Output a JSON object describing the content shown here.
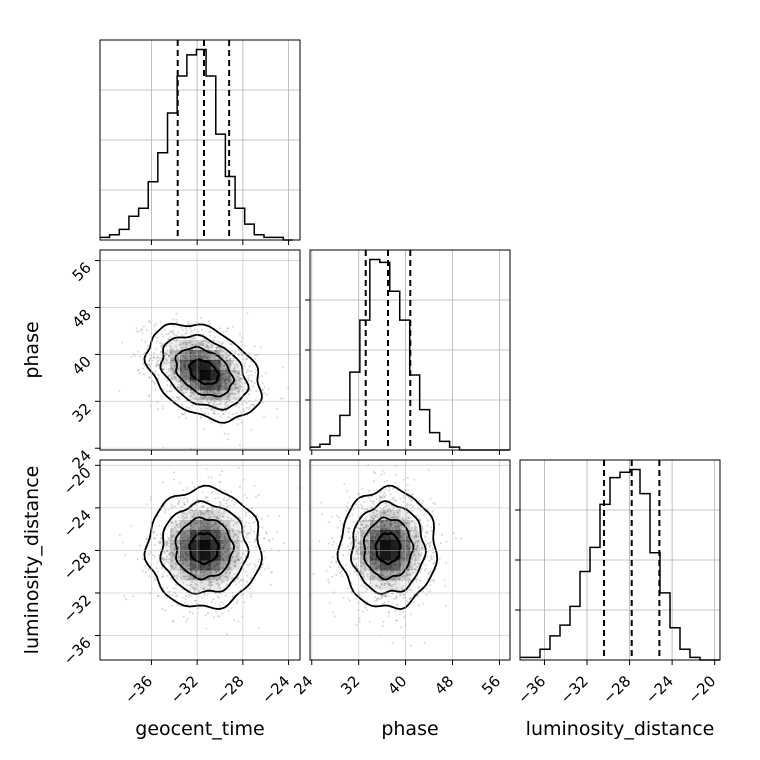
{
  "chart_data": {
    "type": "corner",
    "parameters": [
      {
        "name": "geocent_time",
        "ticks": [
          -36,
          -32,
          -28,
          -24
        ],
        "range": [
          -40.5,
          -23.0
        ]
      },
      {
        "name": "phase",
        "ticks": [
          24,
          32,
          40,
          48,
          56
        ],
        "range": [
          23.7,
          57.8
        ]
      },
      {
        "name": "luminosity_distance",
        "ticks": [
          -36,
          -32,
          -28,
          -24,
          -20
        ],
        "range": [
          -38.3,
          -19.5
        ]
      }
    ],
    "quantiles": {
      "geocent_time": [
        -33.7,
        -31.4,
        -29.2
      ],
      "phase": [
        33.2,
        37.0,
        40.8
      ],
      "luminosity_distance": [
        -30.4,
        -27.8,
        -25.2
      ]
    },
    "histograms": {
      "geocent_time": {
        "bin_edges": [
          -40.5,
          -39.66,
          -38.81,
          -37.97,
          -37.12,
          -36.28,
          -35.44,
          -34.59,
          -33.75,
          -32.9,
          -32.06,
          -31.22,
          -30.37,
          -29.53,
          -28.68,
          -27.84,
          -27.0,
          -26.15,
          -25.31,
          -24.46,
          -23.62
        ],
        "counts": [
          1,
          2,
          4,
          9,
          12,
          22,
          33,
          48,
          62,
          70,
          72,
          62,
          40,
          24,
          12,
          6,
          2,
          1,
          1,
          0
        ]
      },
      "phase": {
        "bin_edges": [
          23.7,
          25.4,
          27.1,
          28.8,
          30.5,
          32.2,
          33.9,
          35.6,
          37.3,
          39.0,
          40.7,
          42.4,
          44.1,
          45.8,
          47.5,
          49.2,
          50.9,
          52.6,
          54.3,
          56.0,
          57.7
        ],
        "counts": [
          1,
          2,
          5,
          12,
          27,
          45,
          66,
          65,
          55,
          45,
          26,
          14,
          6,
          3,
          1,
          0,
          0,
          0,
          0,
          0
        ]
      },
      "luminosity_distance": {
        "bin_edges": [
          -38.3,
          -37.36,
          -36.42,
          -35.48,
          -34.54,
          -33.6,
          -32.66,
          -31.72,
          -30.78,
          -29.84,
          -28.9,
          -27.96,
          -27.02,
          -26.08,
          -25.14,
          -24.2,
          -23.26,
          -22.32,
          -21.38,
          -20.44,
          -19.5
        ],
        "counts": [
          1,
          1,
          4,
          9,
          13,
          20,
          33,
          42,
          58,
          68,
          70,
          71,
          62,
          40,
          25,
          12,
          4,
          1,
          0,
          0
        ]
      }
    },
    "joint": [
      {
        "x": "geocent_time",
        "y": "phase",
        "mean": [
          -31.4,
          37.0
        ],
        "sd": [
          2.3,
          3.8
        ],
        "corr": -0.35
      },
      {
        "x": "geocent_time",
        "y": "luminosity_distance",
        "mean": [
          -31.4,
          -27.8
        ],
        "sd": [
          2.3,
          2.6
        ],
        "corr": 0.0
      },
      {
        "x": "phase",
        "y": "luminosity_distance",
        "mean": [
          37.0,
          -27.8
        ],
        "sd": [
          3.8,
          2.6
        ],
        "corr": 0.0
      }
    ],
    "grid": true,
    "colors": {
      "line": "#000000",
      "density": "#000000",
      "points": "#8c8c8c"
    }
  }
}
